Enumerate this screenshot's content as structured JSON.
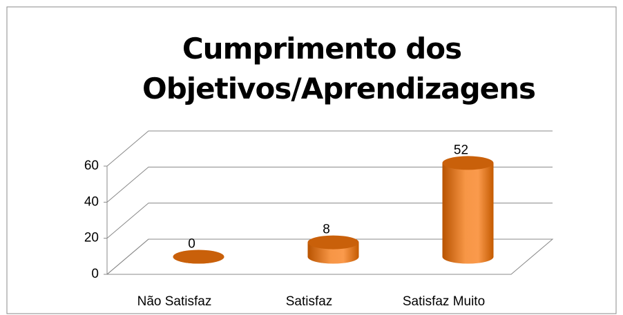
{
  "chart_data": {
    "type": "bar",
    "title": "Cumprimento dos Objetivos/Aprendizagens",
    "categories": [
      "Não Satisfaz",
      "Satisfaz",
      "Satisfaz Muito"
    ],
    "values": [
      0,
      8,
      52
    ],
    "color": "#e46c0a",
    "ylim": [
      0,
      60
    ],
    "yticks": [
      0,
      20,
      40,
      60
    ],
    "grid": true
  }
}
